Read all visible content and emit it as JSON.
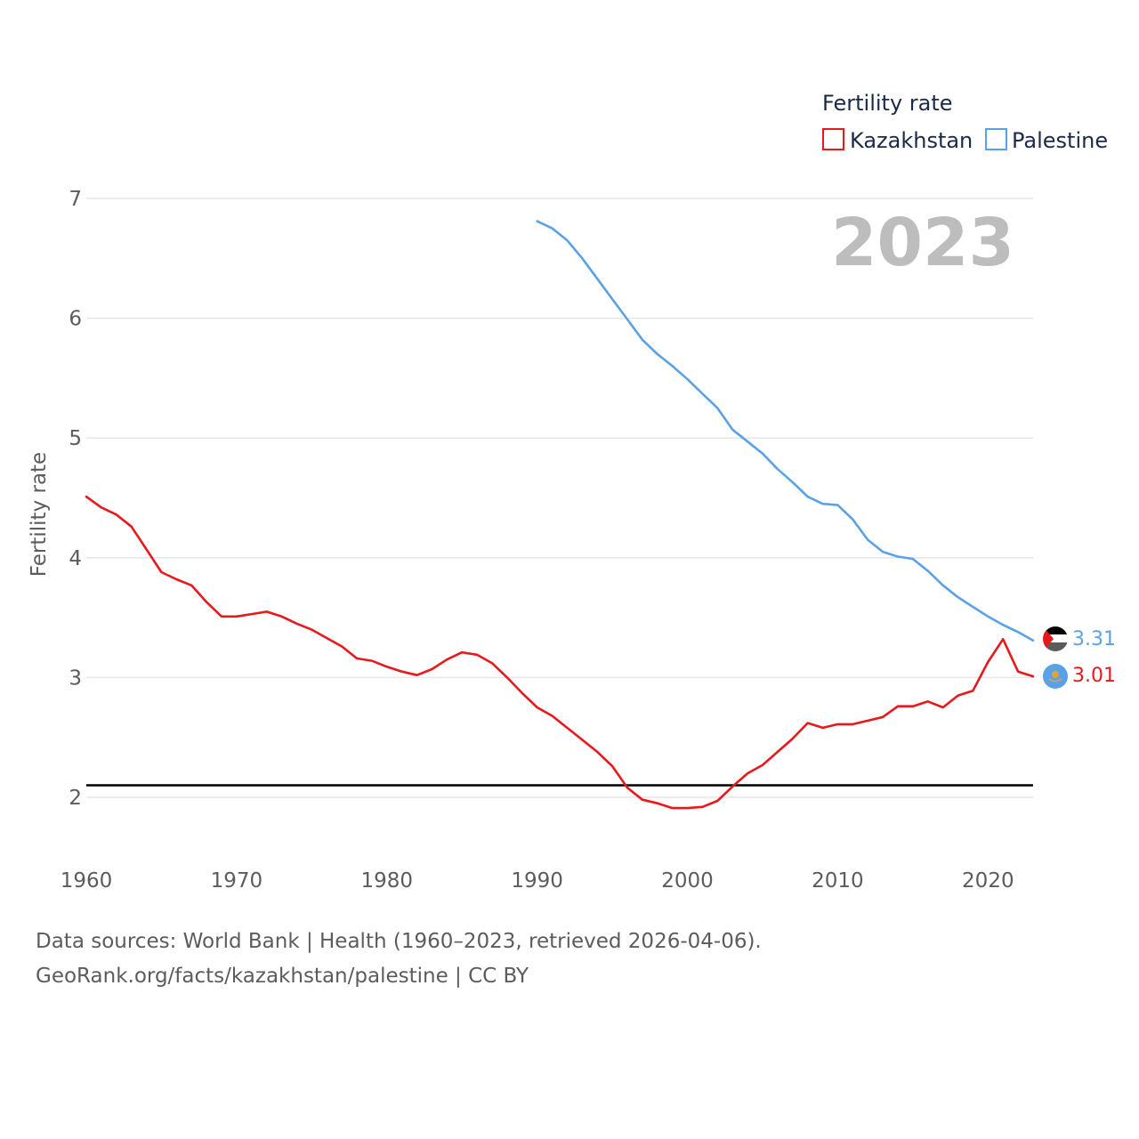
{
  "chart_data": {
    "type": "line",
    "year_label": "2023",
    "ylabel": "Fertility rate",
    "xlabel": "",
    "xlim": [
      1960,
      2023
    ],
    "ylim": [
      1.5,
      7.0
    ],
    "yticks": [
      2,
      3,
      4,
      5,
      6,
      7
    ],
    "ytick_labels": [
      "2",
      "3",
      "4",
      "5",
      "6",
      "7"
    ],
    "xticks": [
      1960,
      1970,
      1980,
      1990,
      2000,
      2010,
      2020
    ],
    "xtick_labels": [
      "1960",
      "1970",
      "1980",
      "1990",
      "2000",
      "2010",
      "2020"
    ],
    "reference_line": {
      "y": 2.1,
      "color": "#000000"
    },
    "legend": {
      "title": "Fertility rate",
      "position": "top-right"
    },
    "series": [
      {
        "name": "Kazakhstan",
        "color": "#e8191c",
        "end_label": "3.01",
        "flag_icon": "kazakhstan-flag-icon",
        "x": [
          1960,
          1961,
          1962,
          1963,
          1964,
          1965,
          1966,
          1967,
          1968,
          1969,
          1970,
          1971,
          1972,
          1973,
          1974,
          1975,
          1976,
          1977,
          1978,
          1979,
          1980,
          1981,
          1982,
          1983,
          1984,
          1985,
          1986,
          1987,
          1988,
          1989,
          1990,
          1991,
          1992,
          1993,
          1994,
          1995,
          1996,
          1997,
          1998,
          1999,
          2000,
          2001,
          2002,
          2003,
          2004,
          2005,
          2006,
          2007,
          2008,
          2009,
          2010,
          2011,
          2012,
          2013,
          2014,
          2015,
          2016,
          2017,
          2018,
          2019,
          2020,
          2021,
          2022,
          2023
        ],
        "values": [
          4.51,
          4.42,
          4.36,
          4.26,
          4.07,
          3.88,
          3.82,
          3.77,
          3.63,
          3.51,
          3.51,
          3.53,
          3.55,
          3.51,
          3.45,
          3.4,
          3.33,
          3.26,
          3.16,
          3.14,
          3.09,
          3.05,
          3.02,
          3.07,
          3.15,
          3.21,
          3.19,
          3.12,
          3.0,
          2.87,
          2.75,
          2.68,
          2.58,
          2.48,
          2.38,
          2.26,
          2.08,
          1.98,
          1.95,
          1.91,
          1.91,
          1.92,
          1.97,
          2.09,
          2.2,
          2.27,
          2.38,
          2.49,
          2.62,
          2.58,
          2.61,
          2.61,
          2.64,
          2.67,
          2.76,
          2.76,
          2.8,
          2.75,
          2.85,
          2.89,
          3.13,
          3.32,
          3.05,
          3.01
        ]
      },
      {
        "name": "Palestine",
        "color": "#5aa2e6",
        "end_label": "3.31",
        "flag_icon": "palestine-flag-icon",
        "x": [
          1990,
          1991,
          1992,
          1993,
          1994,
          1995,
          1996,
          1997,
          1998,
          1999,
          2000,
          2001,
          2002,
          2003,
          2004,
          2005,
          2006,
          2007,
          2008,
          2009,
          2010,
          2011,
          2012,
          2013,
          2014,
          2015,
          2016,
          2017,
          2018,
          2019,
          2020,
          2021,
          2022,
          2023
        ],
        "values": [
          6.81,
          6.75,
          6.65,
          6.5,
          6.33,
          6.16,
          5.99,
          5.82,
          5.7,
          5.6,
          5.49,
          5.37,
          5.25,
          5.07,
          4.97,
          4.87,
          4.74,
          4.63,
          4.51,
          4.45,
          4.44,
          4.32,
          4.15,
          4.05,
          4.01,
          3.99,
          3.89,
          3.77,
          3.67,
          3.59,
          3.51,
          3.44,
          3.38,
          3.31
        ]
      }
    ]
  },
  "source": {
    "line1": "Data sources: World Bank | Health (1960–2023, retrieved 2026-04-06).",
    "line2": "GeoRank.org/facts/kazakhstan/palestine | CC BY"
  }
}
